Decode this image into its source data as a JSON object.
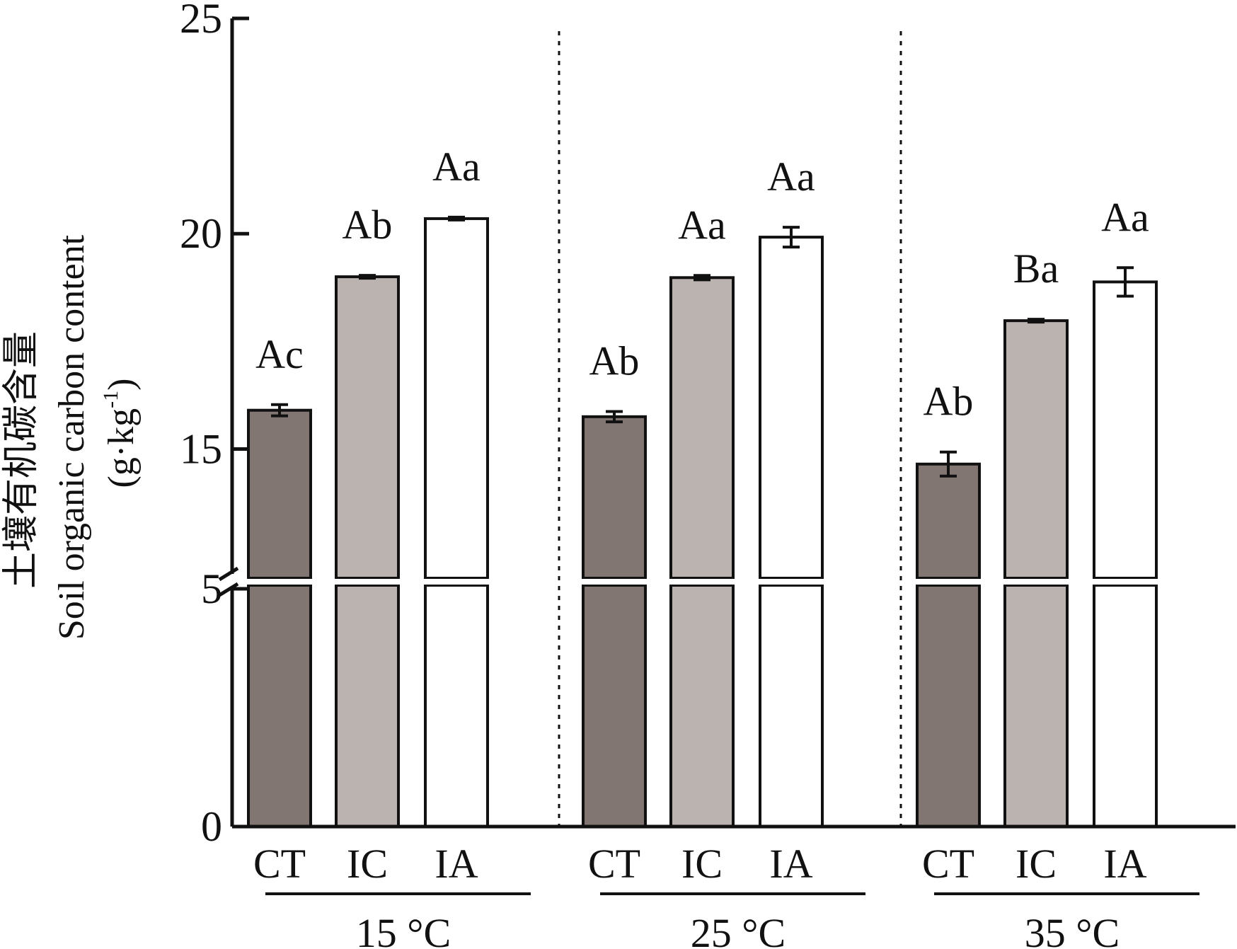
{
  "chart_data": {
    "type": "bar",
    "ylabel_zh": "土壤有机碳含量",
    "ylabel_en": "Soil organic carbon content",
    "ylabel_unit": "(g·kg",
    "ylabel_unit_sup": "-1",
    "ylabel_unit_close": ")",
    "y_ticks": [
      "0",
      "5",
      "15",
      "20",
      "25"
    ],
    "y_break": [
      5,
      12
    ],
    "ylim": [
      0,
      25
    ],
    "groups": [
      {
        "label": "15 °C",
        "bars": [
          {
            "category": "CT",
            "value": 15.9,
            "error": 0.13,
            "sig": "Ac",
            "fill": "#827672"
          },
          {
            "category": "IC",
            "value": 19.0,
            "error": 0.03,
            "sig": "Ab",
            "fill": "#bbb3b0"
          },
          {
            "category": "IA",
            "value": 20.35,
            "error": 0.03,
            "sig": "Aa",
            "fill": "#ffffff"
          }
        ]
      },
      {
        "label": "25 °C",
        "bars": [
          {
            "category": "CT",
            "value": 15.75,
            "error": 0.12,
            "sig": "Ab",
            "fill": "#827672"
          },
          {
            "category": "IC",
            "value": 18.98,
            "error": 0.05,
            "sig": "Aa",
            "fill": "#bbb3b0"
          },
          {
            "category": "IA",
            "value": 19.92,
            "error": 0.23,
            "sig": "Aa",
            "fill": "#ffffff"
          }
        ]
      },
      {
        "label": "35 °C",
        "bars": [
          {
            "category": "CT",
            "value": 14.65,
            "error": 0.28,
            "sig": "Ab",
            "fill": "#827672"
          },
          {
            "category": "IC",
            "value": 17.98,
            "error": 0.03,
            "sig": "Ba",
            "fill": "#bbb3b0"
          },
          {
            "category": "IA",
            "value": 18.88,
            "error": 0.33,
            "sig": "Aa",
            "fill": "#ffffff"
          }
        ]
      }
    ]
  }
}
